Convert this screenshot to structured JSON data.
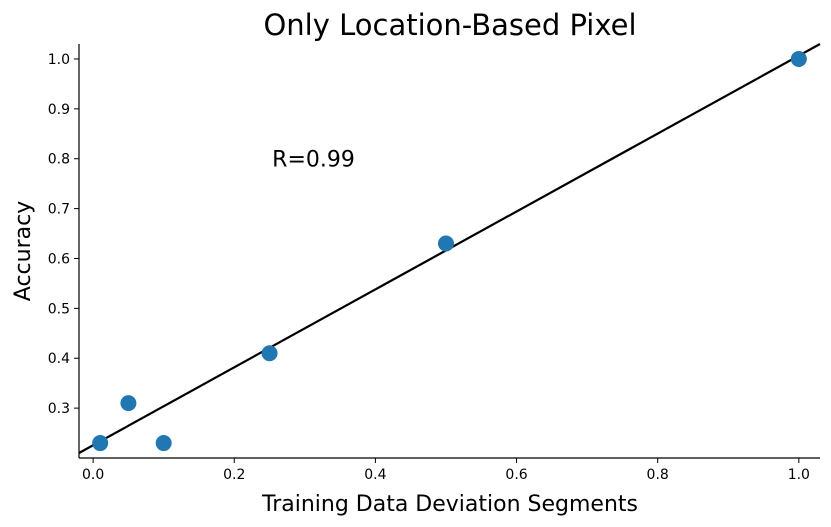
{
  "chart_data": {
    "type": "scatter",
    "title": "Only Location-Based Pixel",
    "xlabel": "Training Data Deviation Segments",
    "ylabel": "Accuracy",
    "xlim": [
      -0.02,
      1.03
    ],
    "ylim": [
      0.2,
      1.03
    ],
    "x_ticks": [
      0.0,
      0.2,
      0.4,
      0.6,
      0.8,
      1.0
    ],
    "x_tick_labels": [
      "0.0",
      "0.2",
      "0.4",
      "0.6",
      "0.8",
      "1.0"
    ],
    "y_ticks": [
      0.3,
      0.4,
      0.5,
      0.6,
      0.7,
      0.8,
      0.9,
      1.0
    ],
    "y_tick_labels": [
      "0.3",
      "0.4",
      "0.5",
      "0.6",
      "0.7",
      "0.8",
      "0.9",
      "1.0"
    ],
    "points": [
      {
        "x": 0.01,
        "y": 0.23
      },
      {
        "x": 0.05,
        "y": 0.31
      },
      {
        "x": 0.1,
        "y": 0.23
      },
      {
        "x": 0.25,
        "y": 0.41
      },
      {
        "x": 0.5,
        "y": 0.63
      },
      {
        "x": 1.0,
        "y": 1.0
      }
    ],
    "fit_line": {
      "x": [
        -0.02,
        1.03
      ],
      "y": [
        0.21,
        1.03
      ]
    },
    "annotation": {
      "text": "R=0.99",
      "x": 0.25,
      "y": 0.8
    },
    "grid": false,
    "colors": {
      "points": "#1f77b4",
      "line": "#000000"
    }
  }
}
